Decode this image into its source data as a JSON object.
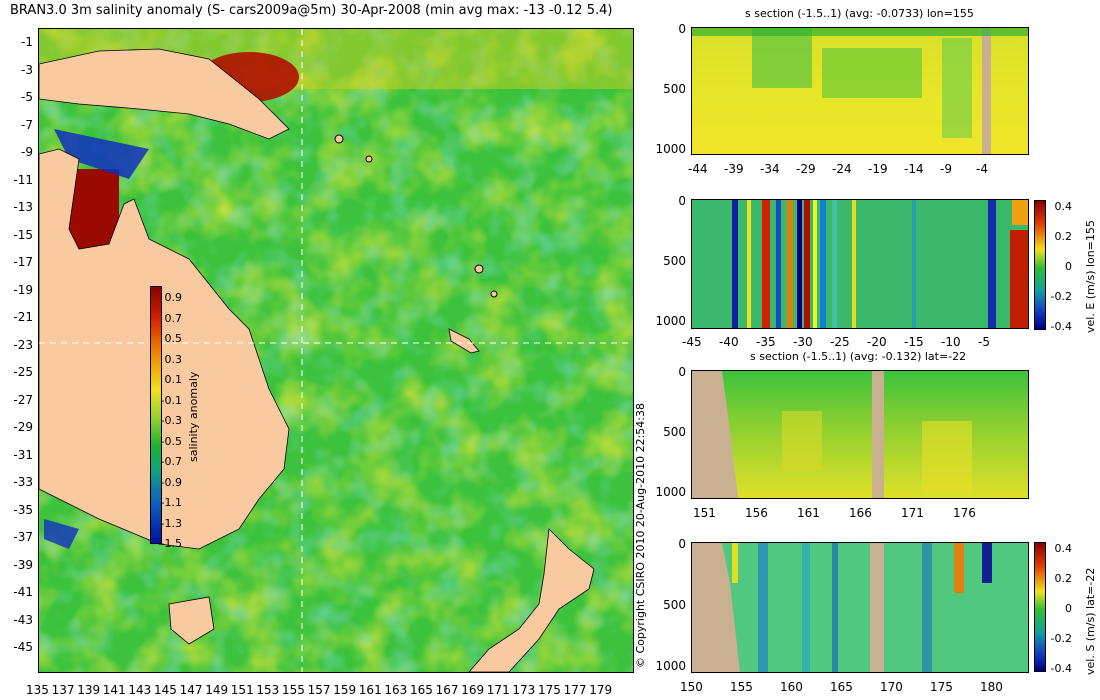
{
  "map": {
    "title": "BRAN3.0 3m salinity anomaly (S- cars2009a@5m) 30-Apr-2008 (min avg max: -13 -0.12 5.4)",
    "y_ticks": [
      "-1",
      "-3",
      "-5",
      "-7",
      "-9",
      "-11",
      "-13",
      "-15",
      "-17",
      "-19",
      "-21",
      "-23",
      "-25",
      "-27",
      "-29",
      "-31",
      "-33",
      "-35",
      "-37",
      "-39",
      "-41",
      "-43",
      "-45"
    ],
    "x_ticks": [
      "135",
      "137",
      "139",
      "141",
      "143",
      "145",
      "147",
      "149",
      "151",
      "153",
      "155",
      "157",
      "159",
      "161",
      "163",
      "165",
      "167",
      "169",
      "171",
      "173",
      "175",
      "177",
      "179"
    ],
    "colorbar": {
      "label": "salinity anomaly",
      "ticks": [
        "0.9",
        "0.7",
        "0.5",
        "0.3",
        "0.1",
        "-0.1",
        "-0.3",
        "-0.5",
        "-0.7",
        "-0.9",
        "-1.1",
        "-1.3",
        "-1.5"
      ]
    },
    "colors": {
      "land": "#f9c9a0",
      "ocean_base": "#3cc23c",
      "warm": "#e8e020",
      "hot": "#b01000",
      "fresh": "#1030c0"
    }
  },
  "copyright": "© Copyright CSIRO 2010    20-Aug-2010 22:54:38",
  "panels": {
    "p1": {
      "title": "s section (-1.5..1) (avg: -0.0733) lon=155",
      "y_ticks": [
        "0",
        "500",
        "1000"
      ],
      "x_ticks": [
        "-44",
        "-39",
        "-34",
        "-29",
        "-24",
        "-19",
        "-14",
        "-9",
        "-4"
      ]
    },
    "p2": {
      "y_ticks": [
        "0",
        "500",
        "1000"
      ],
      "x_ticks": [
        "-45",
        "-40",
        "-35",
        "-30",
        "-25",
        "-20",
        "-15",
        "-10",
        "-5"
      ],
      "colorbar_label": "vel. E (m/s) lon=155",
      "colorbar_ticks": [
        "0.4",
        "0.2",
        "0",
        "-0.2",
        "-0.4"
      ]
    },
    "p3": {
      "title": "s section (-1.5..1) (avg: -0.132) lat=-22",
      "y_ticks": [
        "0",
        "500",
        "1000"
      ],
      "x_ticks": [
        "151",
        "156",
        "161",
        "166",
        "171",
        "176"
      ]
    },
    "p4": {
      "y_ticks": [
        "0",
        "500",
        "1000"
      ],
      "x_ticks": [
        "150",
        "155",
        "160",
        "165",
        "170",
        "175",
        "180"
      ],
      "colorbar_label": "vel. S (m/s) lat=-22",
      "colorbar_ticks": [
        "0.4",
        "0.2",
        "0",
        "-0.2",
        "-0.4"
      ]
    }
  }
}
